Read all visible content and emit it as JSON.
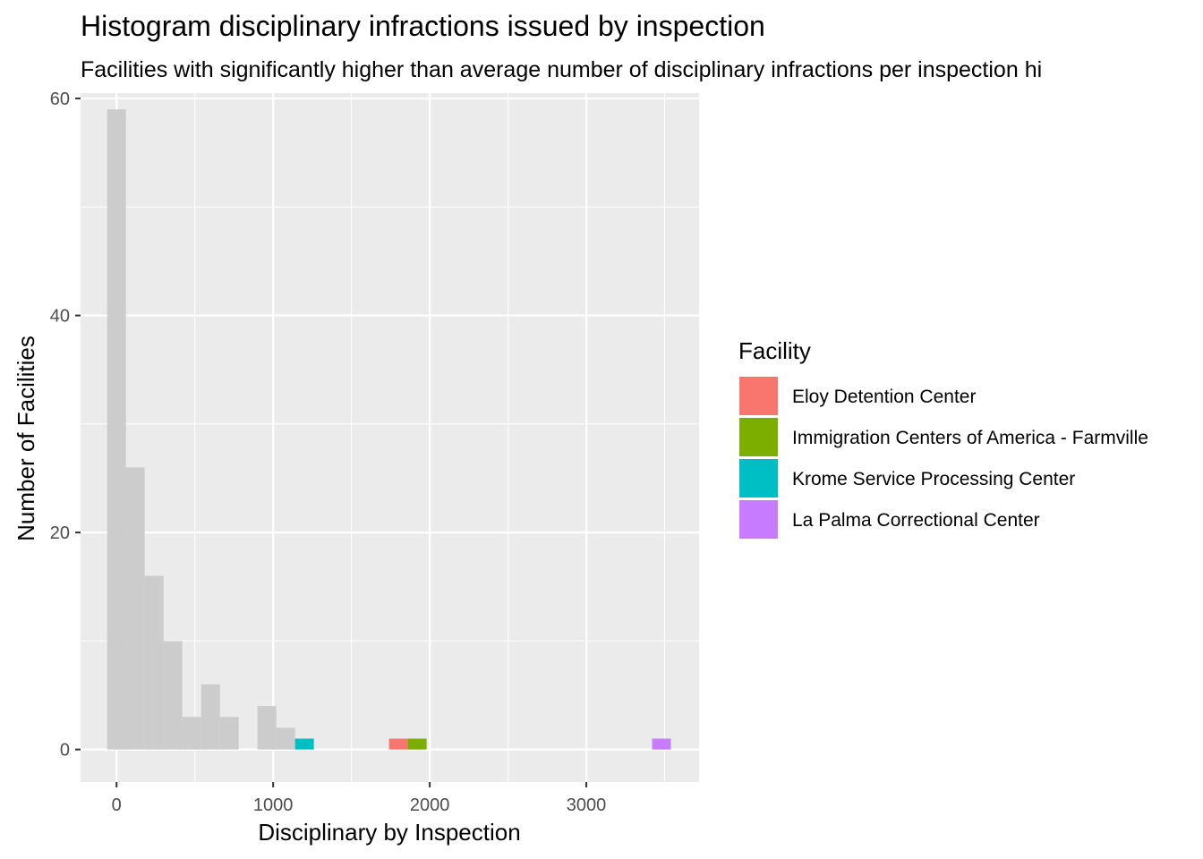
{
  "chart_data": {
    "type": "bar",
    "title": "Histogram disciplinary infractions issued by inspection",
    "subtitle": "Facilities with significantly higher than average number of disciplinary infractions per inspection hi",
    "xlabel": "Disciplinary by Inspection",
    "ylabel": "Number of Facilities",
    "xlim": [
      -230,
      3720
    ],
    "ylim": [
      -3,
      60.5
    ],
    "x_ticks": [
      0,
      1000,
      2000,
      3000
    ],
    "y_ticks": [
      0,
      20,
      40,
      60
    ],
    "grid": true,
    "bin_width": 120,
    "base_color": "#cccccc",
    "base_bins": [
      {
        "x": 0,
        "count": 59
      },
      {
        "x": 120,
        "count": 26
      },
      {
        "x": 240,
        "count": 16
      },
      {
        "x": 360,
        "count": 10
      },
      {
        "x": 480,
        "count": 3
      },
      {
        "x": 600,
        "count": 6
      },
      {
        "x": 720,
        "count": 3
      },
      {
        "x": 840,
        "count": 0
      },
      {
        "x": 960,
        "count": 4
      },
      {
        "x": 1080,
        "count": 2
      }
    ],
    "series": [
      {
        "name": "Eloy Detention Center",
        "color": "#F8766D",
        "x": 1800,
        "count": 1
      },
      {
        "name": "Immigration Centers of America - Farmville",
        "color": "#7CAE00",
        "x": 1920,
        "count": 1
      },
      {
        "name": "Krome Service Processing Center",
        "color": "#00BFC4",
        "x": 1200,
        "count": 1
      },
      {
        "name": "La Palma Correctional Center",
        "color": "#C77CFF",
        "x": 3480,
        "count": 1
      }
    ],
    "legend": {
      "title": "Facility",
      "position": "right"
    }
  }
}
